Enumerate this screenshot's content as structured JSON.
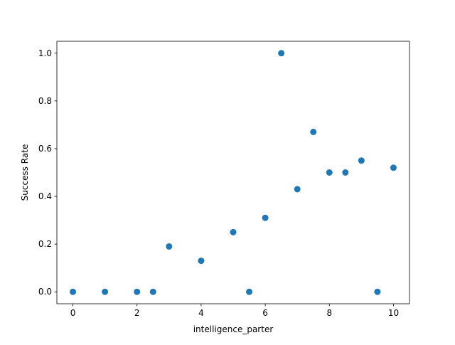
{
  "chart_data": {
    "type": "scatter",
    "title": "",
    "xlabel": "intelligence_parter",
    "ylabel": "Success Rate",
    "xlim": [
      -0.5,
      10.5
    ],
    "ylim": [
      -0.05,
      1.05
    ],
    "xticks": [
      0,
      2,
      4,
      6,
      8,
      10
    ],
    "yticks": [
      0.0,
      0.2,
      0.4,
      0.6,
      0.8,
      1.0
    ],
    "xtick_labels": [
      "0",
      "2",
      "4",
      "6",
      "8",
      "10"
    ],
    "ytick_labels": [
      "0.0",
      "0.2",
      "0.4",
      "0.6",
      "0.8",
      "1.0"
    ],
    "grid": false,
    "marker_color": "#1f77b4",
    "points": [
      {
        "x": 0.0,
        "y": 0.0
      },
      {
        "x": 1.0,
        "y": 0.0
      },
      {
        "x": 2.0,
        "y": 0.0
      },
      {
        "x": 2.5,
        "y": 0.0
      },
      {
        "x": 3.0,
        "y": 0.19
      },
      {
        "x": 4.0,
        "y": 0.13
      },
      {
        "x": 5.0,
        "y": 0.25
      },
      {
        "x": 5.5,
        "y": 0.0
      },
      {
        "x": 6.0,
        "y": 0.31
      },
      {
        "x": 6.5,
        "y": 1.0
      },
      {
        "x": 7.0,
        "y": 0.43
      },
      {
        "x": 7.5,
        "y": 0.67
      },
      {
        "x": 8.0,
        "y": 0.5
      },
      {
        "x": 8.5,
        "y": 0.5
      },
      {
        "x": 9.0,
        "y": 0.55
      },
      {
        "x": 9.5,
        "y": 0.0
      },
      {
        "x": 10.0,
        "y": 0.52
      }
    ]
  }
}
